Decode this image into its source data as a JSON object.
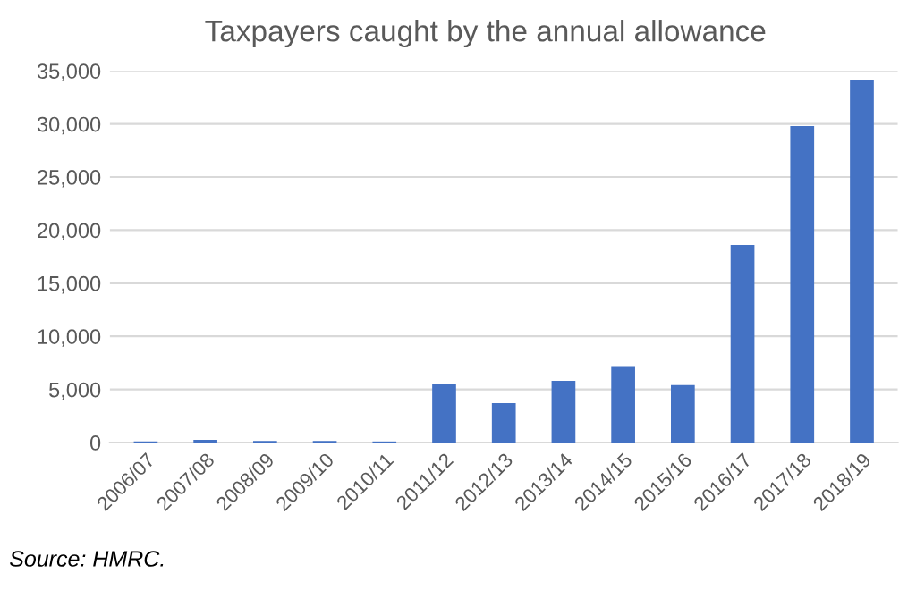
{
  "chart_data": {
    "type": "bar",
    "title": "Taxpayers caught by the annual allowance",
    "categories": [
      "2006/07",
      "2007/08",
      "2008/09",
      "2009/10",
      "2010/11",
      "2011/12",
      "2012/13",
      "2013/14",
      "2014/15",
      "2015/16",
      "2016/17",
      "2017/18",
      "2018/19"
    ],
    "values": [
      100,
      250,
      150,
      150,
      100,
      5500,
      3700,
      5800,
      7200,
      5400,
      18600,
      29800,
      34100
    ],
    "color": "#4472c4",
    "ylim": [
      0,
      35000
    ],
    "yticks": [
      0,
      {
        "value": 5000,
        "label": "5,000"
      },
      {
        "value": 10000,
        "label": "10,000"
      },
      {
        "value": 15000,
        "label": "15,000"
      },
      {
        "value": 20000,
        "label": "20,000"
      },
      {
        "value": 25000,
        "label": "25,000"
      },
      {
        "value": 30000,
        "label": "30,000"
      },
      {
        "value": 35000,
        "label": "35,000"
      }
    ],
    "grid": "y",
    "annotations": [
      "Source: HMRC."
    ]
  }
}
